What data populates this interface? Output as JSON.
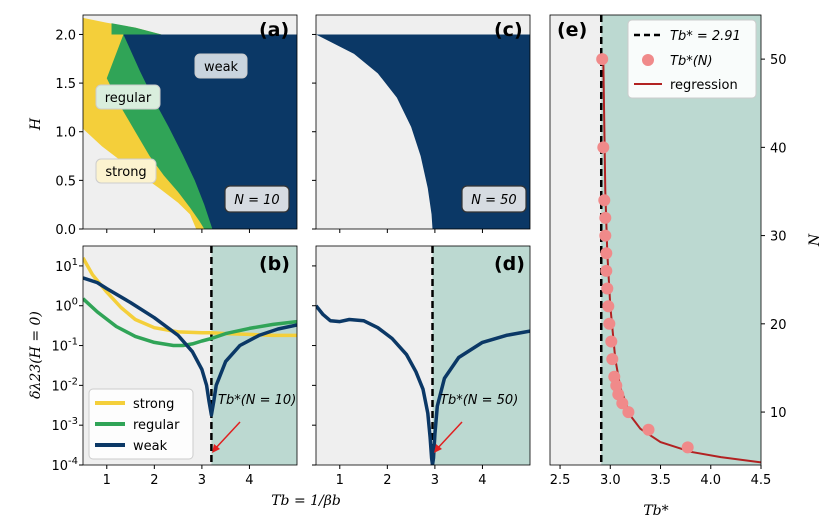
{
  "colors": {
    "strong": "#f4cf3a",
    "regular": "#30a457",
    "weak": "#0b3866",
    "background": "#efefef",
    "shade": "#bcd9d1",
    "points": "#f08a8a",
    "regression": "#b22222",
    "arrow": "#e02020"
  },
  "chart_data": [
    {
      "panel": "a",
      "panel_label": "(a)",
      "type": "heatmap",
      "xlim": [
        0.5,
        5.0
      ],
      "ylim": [
        0.0,
        2.2
      ],
      "xticks": [
        "1",
        "2",
        "3",
        "4"
      ],
      "yticks": [
        "0.0",
        "0.5",
        "1.0",
        "1.5",
        "2.0"
      ],
      "ylabel": "H",
      "region_labels": [
        "weak",
        "regular",
        "strong"
      ],
      "box_label": "N = 10",
      "boundaries": {
        "strong_outer": [
          [
            0.5,
            1.03
          ],
          [
            0.9,
            0.85
          ],
          [
            1.3,
            0.7
          ],
          [
            1.7,
            0.56
          ],
          [
            2.1,
            0.42
          ],
          [
            2.5,
            0.27
          ],
          [
            2.75,
            0.15
          ],
          [
            2.88,
            0.0
          ]
        ],
        "regular_outer": [
          [
            1.35,
            2.0
          ],
          [
            1.7,
            1.62
          ],
          [
            2.0,
            1.32
          ],
          [
            2.3,
            1.05
          ],
          [
            2.6,
            0.76
          ],
          [
            2.85,
            0.5
          ],
          [
            3.05,
            0.25
          ],
          [
            3.22,
            0.0
          ]
        ],
        "white_top": [
          [
            0.5,
            2.17
          ],
          [
            1.0,
            2.12
          ],
          [
            1.6,
            2.07
          ],
          [
            2.0,
            2.03
          ],
          [
            2.15,
            2.0
          ]
        ]
      }
    },
    {
      "panel": "b",
      "panel_label": "(b)",
      "type": "line",
      "xlim": [
        0.5,
        5.0
      ],
      "ylim_log10": [
        -4,
        1.5
      ],
      "xticks": [
        "1",
        "2",
        "3",
        "4"
      ],
      "yticks": [
        "10^-4",
        "10^-3",
        "10^-2",
        "10^-1",
        "10^0",
        "10^1"
      ],
      "ylabel": "δλ23(H = 0)",
      "critical_T": 3.2,
      "annotation": "Tb*(N = 10)",
      "legend": [
        "strong",
        "regular",
        "weak"
      ],
      "series": [
        {
          "name": "strong",
          "x": [
            0.5,
            0.7,
            1.0,
            1.3,
            1.6,
            2.0,
            2.5,
            3.0,
            3.2,
            3.5,
            4.0,
            4.5,
            5.0
          ],
          "y": [
            16,
            6,
            2.2,
            0.9,
            0.45,
            0.28,
            0.22,
            0.21,
            0.21,
            0.2,
            0.19,
            0.18,
            0.18
          ]
        },
        {
          "name": "regular",
          "x": [
            0.5,
            0.8,
            1.2,
            1.6,
            2.0,
            2.4,
            2.6,
            2.8,
            3.0,
            3.2,
            3.5,
            4.0,
            4.5,
            5.0
          ],
          "y": [
            1.5,
            0.7,
            0.3,
            0.17,
            0.12,
            0.1,
            0.1,
            0.11,
            0.13,
            0.15,
            0.2,
            0.27,
            0.34,
            0.4
          ]
        },
        {
          "name": "weak",
          "x": [
            0.5,
            0.8,
            1.0,
            1.5,
            2.0,
            2.5,
            2.8,
            3.0,
            3.1,
            3.15,
            3.2,
            3.25,
            3.3,
            3.5,
            3.8,
            4.2,
            4.6,
            5.0
          ],
          "y": [
            5,
            3.8,
            2.7,
            1.2,
            0.5,
            0.18,
            0.07,
            0.025,
            0.01,
            0.004,
            0.0018,
            0.004,
            0.01,
            0.04,
            0.1,
            0.18,
            0.26,
            0.33
          ]
        }
      ]
    },
    {
      "panel": "c",
      "panel_label": "(c)",
      "type": "heatmap",
      "xlim": [
        0.5,
        5.0
      ],
      "ylim": [
        0.0,
        2.2
      ],
      "box_label": "N = 50",
      "boundaries": {
        "weak_left": [
          [
            0.5,
            2.0
          ],
          [
            1.3,
            1.8
          ],
          [
            1.8,
            1.6
          ],
          [
            2.2,
            1.35
          ],
          [
            2.5,
            1.05
          ],
          [
            2.7,
            0.75
          ],
          [
            2.85,
            0.42
          ],
          [
            2.93,
            0.15
          ],
          [
            2.95,
            0.0
          ]
        ]
      }
    },
    {
      "panel": "d",
      "panel_label": "(d)",
      "type": "line",
      "xlim": [
        0.5,
        5.0
      ],
      "ylim_log10": [
        -4,
        1.5
      ],
      "xticks": [
        "1",
        "2",
        "3",
        "4"
      ],
      "critical_T": 2.95,
      "annotation": "Tb*(N = 50)",
      "series": [
        {
          "name": "weak",
          "x": [
            0.5,
            0.65,
            0.8,
            1.0,
            1.2,
            1.5,
            1.8,
            2.1,
            2.4,
            2.6,
            2.75,
            2.85,
            2.9,
            2.93,
            2.95,
            2.97,
            3.0,
            3.05,
            3.2,
            3.5,
            4.0,
            4.5,
            5.0
          ],
          "y": [
            1.0,
            0.6,
            0.42,
            0.4,
            0.45,
            0.42,
            0.28,
            0.15,
            0.06,
            0.022,
            0.008,
            0.002,
            0.0005,
            0.00015,
            0.0001,
            0.00015,
            0.0006,
            0.003,
            0.015,
            0.05,
            0.12,
            0.18,
            0.23
          ]
        }
      ]
    },
    {
      "panel": "e",
      "panel_label": "(e)",
      "type": "scatter",
      "xlim": [
        2.4,
        4.5
      ],
      "ylim": [
        4,
        55
      ],
      "xticks": [
        "2.5",
        "3.0",
        "3.5",
        "4.0",
        "4.5"
      ],
      "yticks": [
        "10",
        "20",
        "30",
        "40",
        "50"
      ],
      "xlabel": "Tb*",
      "ylabel": "N",
      "vline": 2.91,
      "legend": [
        "Tb* = 2.91",
        "Tb*(N)",
        "regression"
      ],
      "points": {
        "x": [
          2.92,
          2.93,
          2.94,
          2.95,
          2.95,
          2.96,
          2.96,
          2.97,
          2.98,
          2.99,
          3.01,
          3.02,
          3.04,
          3.06,
          3.08,
          3.12,
          3.18,
          3.38,
          3.77
        ],
        "y": [
          50,
          40,
          34,
          32,
          30,
          28,
          26,
          24,
          22,
          20,
          18,
          16,
          14,
          13,
          12,
          11,
          10,
          8,
          6
        ]
      },
      "regression": {
        "x": [
          2.93,
          2.95,
          2.97,
          3.0,
          3.05,
          3.1,
          3.2,
          3.3,
          3.5,
          3.8,
          4.1,
          4.5
        ],
        "y": [
          50,
          35,
          28,
          22,
          16,
          12.8,
          9.6,
          8.1,
          6.6,
          5.5,
          4.9,
          4.3
        ]
      }
    }
  ],
  "labels": {
    "a": "(a)",
    "b": "(b)",
    "c": "(c)",
    "d": "(d)",
    "e": "(e)",
    "weak": "weak",
    "regular": "regular",
    "strong": "strong",
    "boxA": "N = 10",
    "boxC": "N = 50",
    "H": "H",
    "N": "N",
    "annB": "Tb*(N = 10)",
    "annD": "Tb*(N = 50)",
    "legWeak": "weak",
    "legRegular": "regular",
    "legStrong": "strong",
    "legVline": "Tb* = 2.91",
    "legPts": "Tb*(N)",
    "legReg": "regression",
    "xlabelBD": "Tb = 1/βb",
    "xlabelE": "Tb*",
    "ylabelB": "δλ23(H = 0)"
  }
}
